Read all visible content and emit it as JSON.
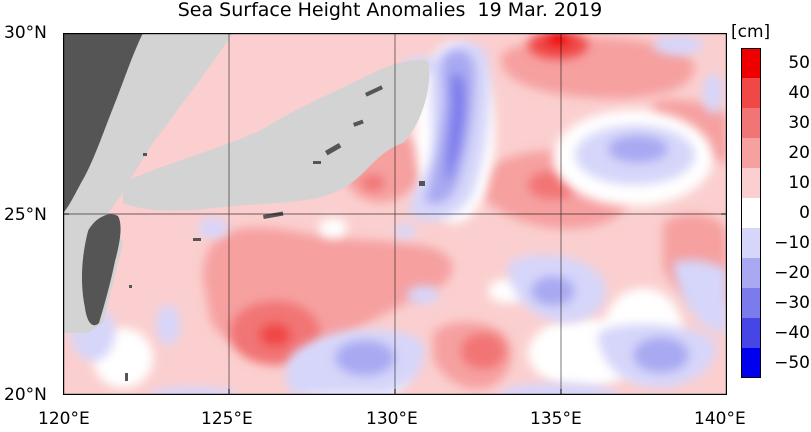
{
  "title": "Sea Surface Height Anomalies",
  "date": "19 Mar. 2019",
  "unit_label": "[cm]",
  "lat_labels": [
    "30°N",
    "25°N",
    "20°N"
  ],
  "lon_labels": [
    "120°E",
    "125°E",
    "130°E",
    "135°E",
    "140°E"
  ],
  "colorbar": {
    "ticks": [
      "50",
      "40",
      "30",
      "20",
      "10",
      "0",
      "−10",
      "−20",
      "−30",
      "−40",
      "−50"
    ],
    "levels": [
      {
        "color": "#ee0000"
      },
      {
        "color": "#f04747"
      },
      {
        "color": "#f27575"
      },
      {
        "color": "#f6a0a0"
      },
      {
        "color": "#fbcfcf"
      },
      {
        "color": "#ffffff"
      },
      {
        "color": "#d6d6fa"
      },
      {
        "color": "#a9a9f2"
      },
      {
        "color": "#7b7bec"
      },
      {
        "color": "#4646e6"
      },
      {
        "color": "#0000ee"
      }
    ]
  },
  "colors": {
    "land": "#d3d3d3",
    "taiwan": "#555555",
    "grid": "#000000"
  }
}
